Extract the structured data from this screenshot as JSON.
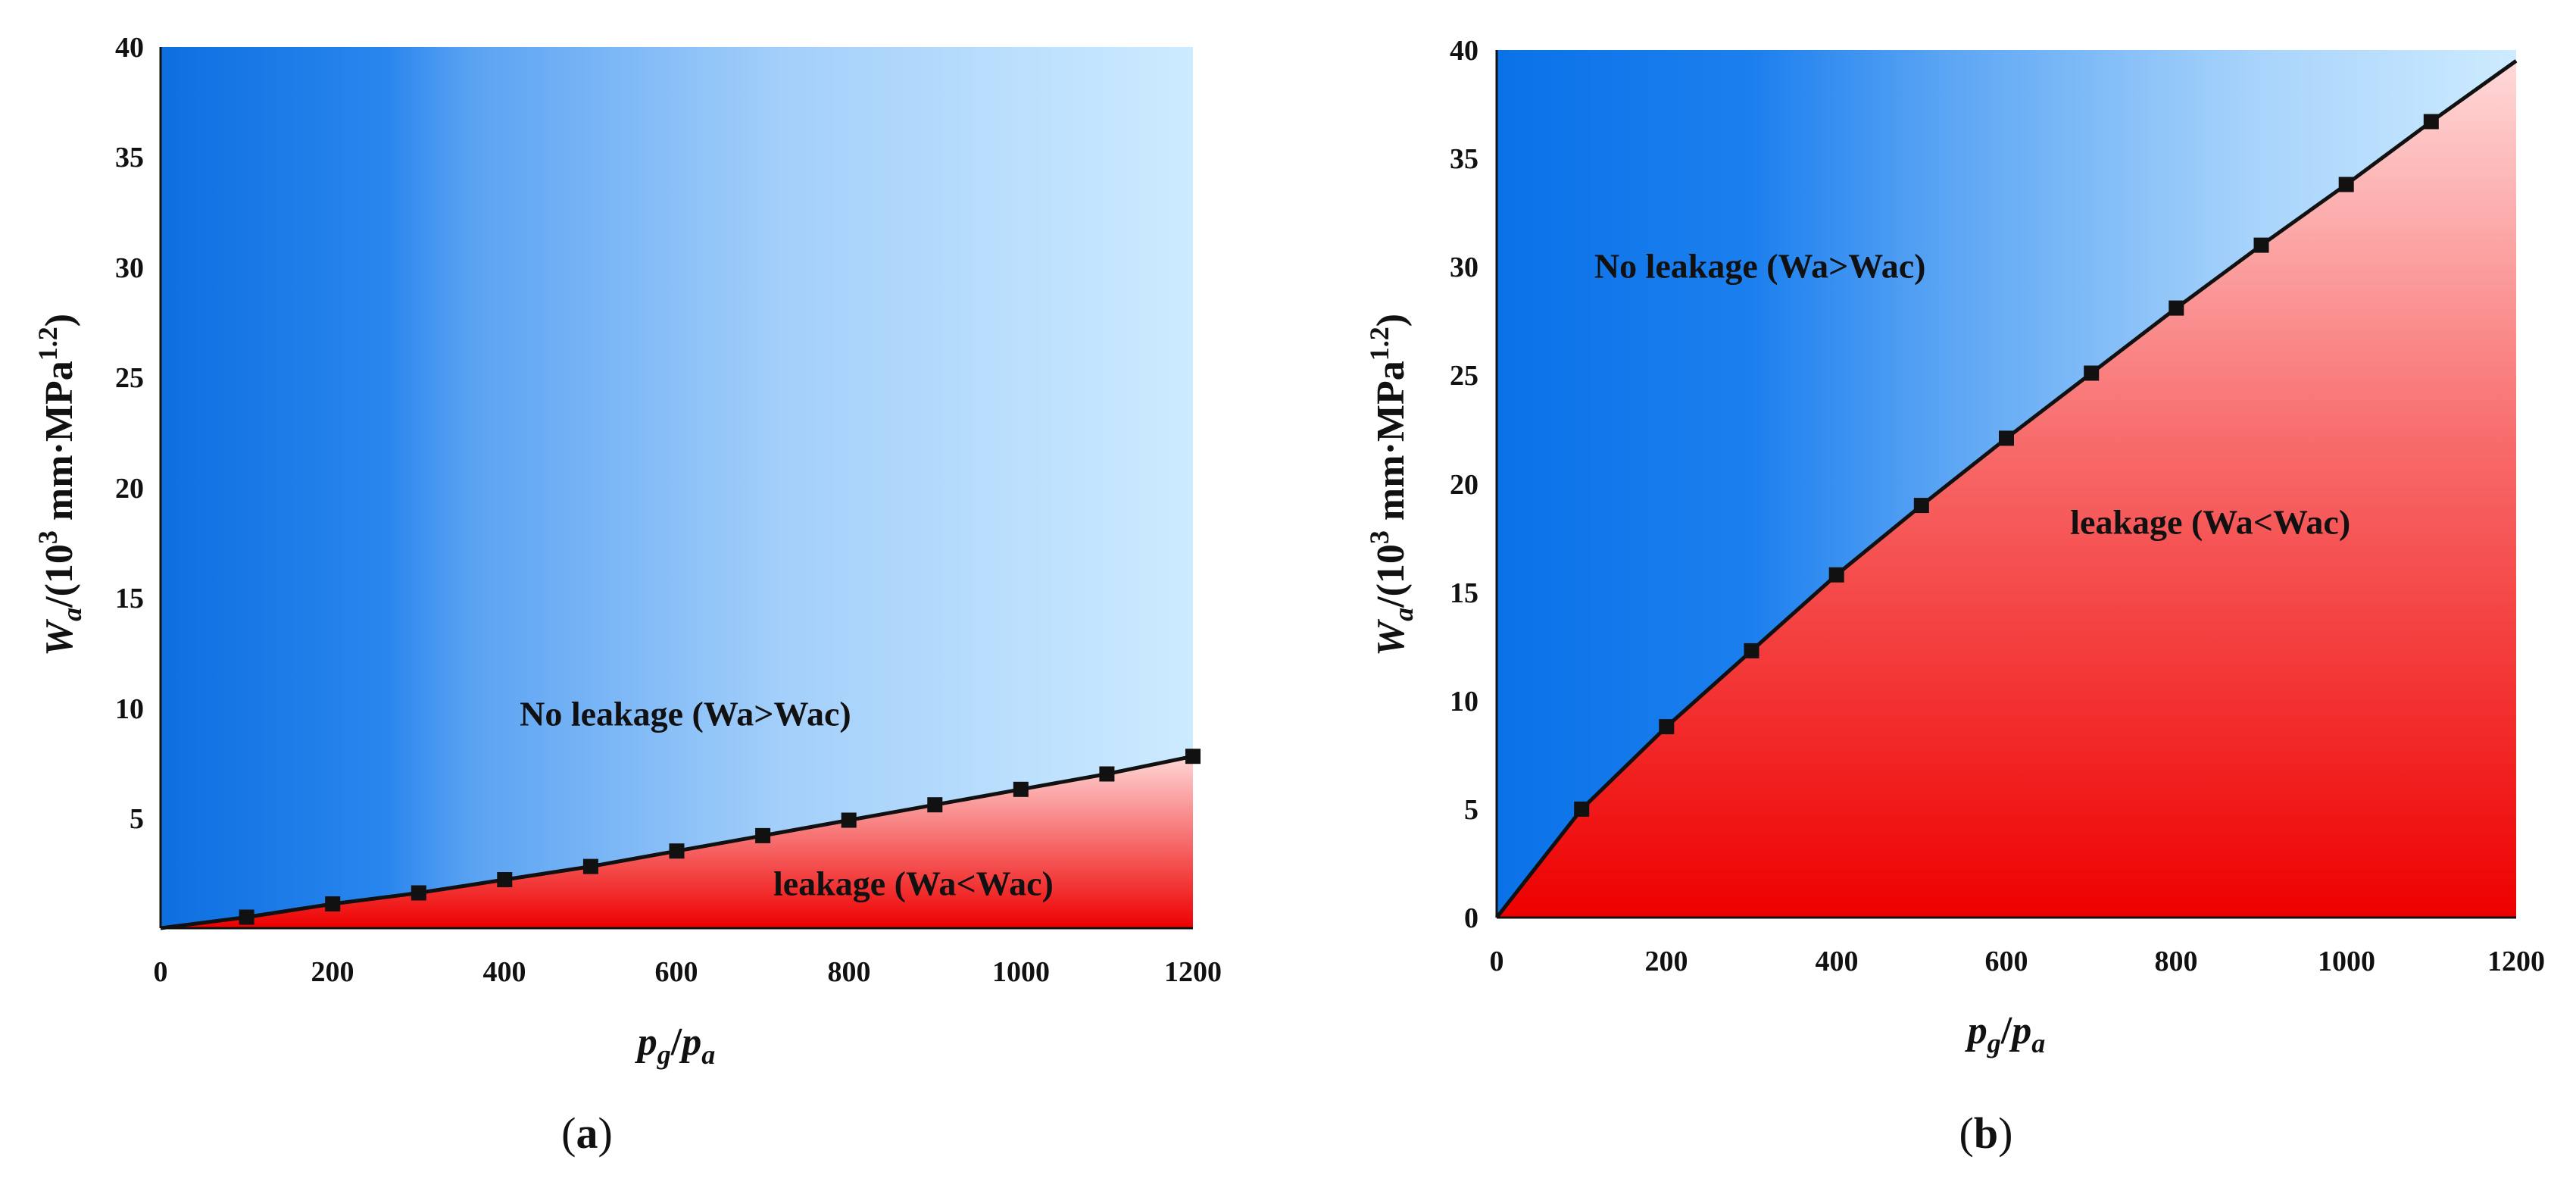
{
  "chart_data": [
    {
      "type": "line",
      "panel": "a",
      "caption_open": "(",
      "caption_letter": "a",
      "caption_close": ")",
      "xlabel_base": "p",
      "xlabel_sub1": "g",
      "xlabel_slash": "/",
      "xlabel_base2": "p",
      "xlabel_sub2": "a",
      "ylabel_base": "W",
      "ylabel_sub": "a",
      "ylabel_text": "/(10",
      "ylabel_exp": "3",
      "ylabel_unit": " mm·MPa",
      "ylabel_exp2": "1.2",
      "ylabel_close": ")",
      "xlim": [
        0,
        1200
      ],
      "ylim": [
        0,
        40
      ],
      "xticks": [
        0,
        200,
        400,
        600,
        800,
        1000,
        1200
      ],
      "yticks": [
        5,
        10,
        15,
        20,
        25,
        30,
        35,
        40
      ],
      "x": [
        0,
        100,
        200,
        300,
        400,
        500,
        600,
        700,
        800,
        900,
        1000,
        1100,
        1200
      ],
      "y": [
        0,
        0.5,
        1.1,
        1.6,
        2.2,
        2.8,
        3.5,
        4.2,
        4.9,
        5.6,
        6.3,
        7.0,
        7.8
      ],
      "marker_x": [
        100,
        200,
        300,
        400,
        500,
        600,
        700,
        800,
        900,
        1000,
        1100,
        1200
      ],
      "annotation_upper": "No leakage  (Wa>Wac)",
      "annotation_lower": "leakage  (Wa<Wac)",
      "annotation_upper_at": [
        610,
        9.2
      ],
      "annotation_lower_at": [
        875,
        1.5
      ],
      "colors": {
        "upper_dark": "#0d6fe0",
        "upper_light": "#cdebff",
        "lower_dark": "#ee0000",
        "lower_light": "#ffd6d6",
        "line": "#111111"
      }
    },
    {
      "type": "line",
      "panel": "b",
      "caption_open": "(",
      "caption_letter": "b",
      "caption_close": ")",
      "xlabel_base": "p",
      "xlabel_sub1": "g",
      "xlabel_slash": "/",
      "xlabel_base2": "p",
      "xlabel_sub2": "a",
      "ylabel_base": "W",
      "ylabel_sub": "a",
      "ylabel_text": "/(10",
      "ylabel_exp": "3",
      "ylabel_unit": " mm·MPa",
      "ylabel_exp2": "1.2",
      "ylabel_close": ")",
      "xlim": [
        0,
        1200
      ],
      "ylim": [
        0,
        40
      ],
      "xticks": [
        0,
        200,
        400,
        600,
        800,
        1000,
        1200
      ],
      "yticks": [
        0,
        5,
        10,
        15,
        20,
        25,
        30,
        35,
        40
      ],
      "x": [
        0,
        100,
        200,
        300,
        400,
        500,
        600,
        700,
        800,
        900,
        1000,
        1100,
        1200
      ],
      "y": [
        0,
        5.0,
        8.8,
        12.3,
        15.8,
        19.0,
        22.1,
        25.1,
        28.1,
        31.0,
        33.8,
        36.7,
        39.5
      ],
      "marker_x": [
        100,
        200,
        300,
        400,
        500,
        600,
        700,
        800,
        900,
        1000,
        1100
      ],
      "annotation_upper": "No leakage  (Wa>Wac)",
      "annotation_lower": "leakage  (Wa<Wac)",
      "annotation_upper_at": [
        310,
        29.5
      ],
      "annotation_lower_at": [
        840,
        17.7
      ],
      "colors": {
        "upper_dark": "#0a72e8",
        "upper_light": "#cdebff",
        "lower_dark": "#ee0000",
        "lower_light": "#ffd9d9",
        "line": "#111111"
      }
    }
  ]
}
